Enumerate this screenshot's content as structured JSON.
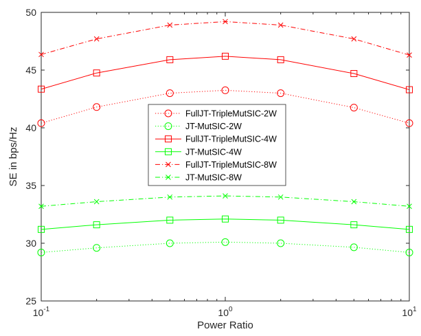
{
  "chart_data": {
    "type": "line",
    "xscale": "log",
    "x": [
      0.1,
      0.2,
      0.5,
      1,
      2,
      5,
      10
    ],
    "xlim": [
      0.1,
      10
    ],
    "ylim": [
      25,
      50
    ],
    "yticks": [
      25,
      30,
      35,
      40,
      45,
      50
    ],
    "xticks": [
      {
        "value": 0.1,
        "base": "10",
        "exp": "-1"
      },
      {
        "value": 1,
        "base": "10",
        "exp": "0"
      },
      {
        "value": 10,
        "base": "10",
        "exp": "1"
      }
    ],
    "xlabel": "Power Ratio",
    "ylabel": "SE in bps/Hz",
    "grid": false,
    "legend_position": "center",
    "series": [
      {
        "name": "FullJT-TripleMutSIC-2W",
        "color": "#ff0000",
        "dash": "dotted",
        "marker": "circle",
        "values": [
          40.4,
          41.8,
          43.0,
          43.25,
          43.0,
          41.75,
          40.4
        ]
      },
      {
        "name": "JT-MutSIC-2W",
        "color": "#00ff00",
        "dash": "dotted",
        "marker": "circle",
        "values": [
          29.2,
          29.6,
          30.0,
          30.1,
          30.0,
          29.65,
          29.2
        ]
      },
      {
        "name": "FullJT-TripleMutSIC-4W",
        "color": "#ff0000",
        "dash": "solid",
        "marker": "square",
        "values": [
          43.35,
          44.75,
          45.9,
          46.2,
          45.9,
          44.7,
          43.3
        ]
      },
      {
        "name": "JT-MutSIC-4W",
        "color": "#00ff00",
        "dash": "solid",
        "marker": "square",
        "values": [
          31.2,
          31.6,
          32.0,
          32.1,
          32.0,
          31.6,
          31.2
        ]
      },
      {
        "name": "FullJT-TripleMutSIC-8W",
        "color": "#ff0000",
        "dash": "dashdot",
        "marker": "x",
        "values": [
          46.35,
          47.7,
          48.9,
          49.2,
          48.9,
          47.7,
          46.3
        ]
      },
      {
        "name": "JT-MutSIC-8W",
        "color": "#00ff00",
        "dash": "dashdot",
        "marker": "x",
        "values": [
          33.2,
          33.6,
          34.0,
          34.1,
          34.0,
          33.6,
          33.2
        ]
      }
    ]
  }
}
